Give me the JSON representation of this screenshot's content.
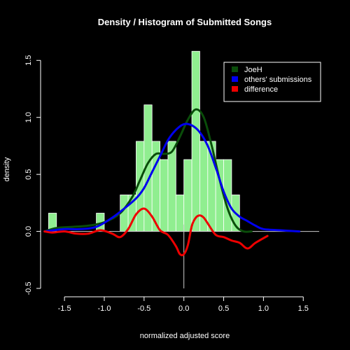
{
  "chart_data": {
    "type": "bar",
    "title": "Density / Histogram of Submitted Songs",
    "xlabel": "normalized adjusted score",
    "ylabel": "density",
    "xlim": [
      -1.8,
      1.7
    ],
    "ylim": [
      -0.5,
      1.6
    ],
    "x_ticks": [
      -1.5,
      -1.0,
      -0.5,
      0.0,
      0.5,
      1.0,
      1.5
    ],
    "x_tick_labels": [
      "-1.5",
      "-1.0",
      "-0.5",
      "0.0",
      "0.5",
      "1.0",
      "1.5"
    ],
    "y_ticks": [
      -0.5,
      0.0,
      0.5,
      1.0,
      1.5
    ],
    "y_tick_labels": [
      "-0.5",
      "0.0",
      "0.5",
      "1.0",
      "1.5"
    ],
    "reference_lines": {
      "horizontal_at": 0,
      "vertical_at": 0
    },
    "grid": false,
    "legend_position": "top-right",
    "histogram": {
      "color": "#90EE90",
      "bin_width": 0.1,
      "bin_starts": [
        -1.7,
        -1.1,
        -0.8,
        -0.7,
        -0.6,
        -0.5,
        -0.4,
        -0.3,
        -0.2,
        -0.1,
        0.0,
        0.1,
        0.2,
        0.3,
        0.4,
        0.5,
        0.6
      ],
      "densities": [
        0.16,
        0.16,
        0.32,
        0.32,
        0.79,
        1.11,
        0.79,
        0.63,
        0.79,
        0.32,
        0.63,
        1.58,
        0.79,
        0.79,
        0.63,
        0.63,
        0.32
      ]
    },
    "series": [
      {
        "name": "JoeH",
        "color": "#0a4d0a",
        "x": [
          -1.75,
          -1.6,
          -1.4,
          -1.2,
          -1.0,
          -0.8,
          -0.65,
          -0.55,
          -0.45,
          -0.35,
          -0.25,
          -0.15,
          -0.05,
          0.05,
          0.15,
          0.25,
          0.35,
          0.45,
          0.55,
          0.65,
          0.75,
          0.85
        ],
        "y": [
          0.0,
          0.03,
          0.04,
          0.05,
          0.08,
          0.16,
          0.3,
          0.45,
          0.6,
          0.68,
          0.68,
          0.7,
          0.83,
          0.98,
          1.07,
          1.0,
          0.75,
          0.45,
          0.2,
          0.05,
          0.0,
          0.0
        ]
      },
      {
        "name": "others' submissions",
        "color": "#0000ee",
        "x": [
          -1.75,
          -1.5,
          -1.3,
          -1.1,
          -0.9,
          -0.75,
          -0.6,
          -0.5,
          -0.4,
          -0.3,
          -0.2,
          -0.1,
          0.0,
          0.1,
          0.2,
          0.3,
          0.4,
          0.5,
          0.6,
          0.7,
          0.8,
          0.9,
          1.0,
          1.2,
          1.45
        ],
        "y": [
          0.0,
          0.02,
          0.02,
          0.04,
          0.12,
          0.2,
          0.29,
          0.38,
          0.52,
          0.66,
          0.8,
          0.89,
          0.94,
          0.93,
          0.87,
          0.75,
          0.56,
          0.35,
          0.2,
          0.13,
          0.09,
          0.05,
          0.02,
          0.01,
          0.0
        ]
      },
      {
        "name": "difference",
        "color": "#ee0000",
        "x": [
          -1.75,
          -1.65,
          -1.5,
          -1.35,
          -1.2,
          -1.05,
          -0.9,
          -0.8,
          -0.7,
          -0.6,
          -0.5,
          -0.4,
          -0.3,
          -0.2,
          -0.1,
          -0.05,
          0.0,
          0.05,
          0.1,
          0.15,
          0.2,
          0.25,
          0.3,
          0.4,
          0.5,
          0.6,
          0.7,
          0.8,
          0.9,
          1.05
        ],
        "y": [
          0.0,
          -0.01,
          0.0,
          -0.02,
          -0.02,
          0.01,
          -0.02,
          -0.05,
          0.02,
          0.15,
          0.2,
          0.13,
          0.01,
          -0.03,
          -0.13,
          -0.2,
          -0.2,
          -0.12,
          0.05,
          0.12,
          0.14,
          0.12,
          0.07,
          -0.03,
          -0.05,
          -0.08,
          -0.1,
          -0.15,
          -0.1,
          -0.04
        ]
      }
    ]
  }
}
